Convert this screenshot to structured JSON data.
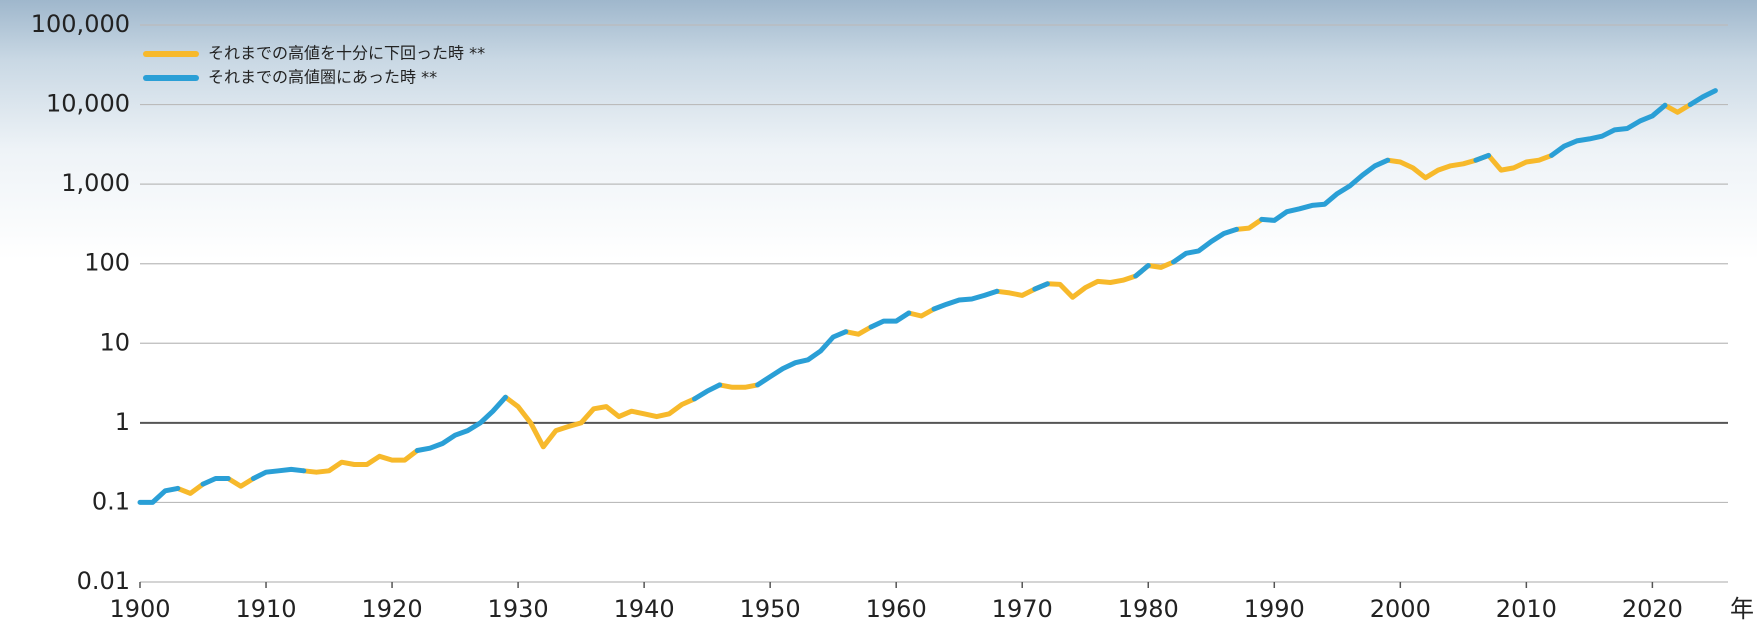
{
  "chart_data": {
    "type": "line",
    "x_label": "年",
    "log_y": true,
    "grid": true,
    "xlim": [
      1900,
      2026
    ],
    "xticks": [
      1900,
      1910,
      1920,
      1930,
      1940,
      1950,
      1960,
      1970,
      1980,
      1990,
      2000,
      2010,
      2020
    ],
    "ylim": [
      0.01,
      100000
    ],
    "yticks": [
      0.01,
      0.1,
      1,
      10,
      100,
      {
        "value": 1000,
        "label": "1,000"
      },
      {
        "value": 10000,
        "label": "10,000"
      },
      {
        "value": 100000,
        "label": "100,000"
      }
    ],
    "x": [
      1900,
      1901,
      1902,
      1903,
      1904,
      1905,
      1906,
      1907,
      1908,
      1909,
      1910,
      1911,
      1912,
      1913,
      1914,
      1915,
      1916,
      1917,
      1918,
      1919,
      1920,
      1921,
      1922,
      1923,
      1924,
      1925,
      1926,
      1927,
      1928,
      1929,
      1930,
      1931,
      1932,
      1933,
      1934,
      1935,
      1936,
      1937,
      1938,
      1939,
      1940,
      1941,
      1942,
      1943,
      1944,
      1945,
      1946,
      1947,
      1948,
      1949,
      1950,
      1951,
      1952,
      1953,
      1954,
      1955,
      1956,
      1957,
      1958,
      1959,
      1960,
      1961,
      1962,
      1963,
      1964,
      1965,
      1966,
      1967,
      1968,
      1969,
      1970,
      1971,
      1972,
      1973,
      1974,
      1975,
      1976,
      1977,
      1978,
      1979,
      1980,
      1981,
      1982,
      1983,
      1984,
      1985,
      1986,
      1987,
      1988,
      1989,
      1990,
      1991,
      1992,
      1993,
      1994,
      1995,
      1996,
      1997,
      1998,
      1999,
      2000,
      2001,
      2002,
      2003,
      2004,
      2005,
      2006,
      2007,
      2008,
      2009,
      2010,
      2011,
      2012,
      2013,
      2014,
      2015,
      2016,
      2017,
      2018,
      2019,
      2020,
      2021,
      2022,
      2023,
      2024,
      2025
    ],
    "series": [
      {
        "name": "それまでの高値を十分に下回った時 **",
        "color": "#f7b92b",
        "values": [
          null,
          null,
          null,
          0.15,
          0.13,
          0.17,
          null,
          0.2,
          0.16,
          0.2,
          null,
          null,
          null,
          0.25,
          0.24,
          0.25,
          0.32,
          0.3,
          0.3,
          0.38,
          0.34,
          0.34,
          0.45,
          null,
          null,
          null,
          null,
          null,
          null,
          2.1,
          1.6,
          1.0,
          0.5,
          0.8,
          0.9,
          1.0,
          1.5,
          1.6,
          1.2,
          1.4,
          1.3,
          1.2,
          1.3,
          1.7,
          2.0,
          null,
          3.0,
          2.8,
          2.8,
          3.0,
          null,
          null,
          null,
          null,
          null,
          null,
          14,
          13,
          16,
          null,
          null,
          24,
          22,
          27,
          null,
          null,
          null,
          null,
          45,
          43,
          40,
          48,
          56,
          55,
          38,
          50,
          60,
          58,
          62,
          70,
          95,
          90,
          105,
          null,
          null,
          null,
          null,
          270,
          280,
          360,
          null,
          null,
          null,
          null,
          null,
          null,
          null,
          null,
          null,
          2000,
          1900,
          1600,
          1200,
          1500,
          1700,
          1800,
          2000,
          2300,
          1500,
          1600,
          1900,
          2000,
          2300,
          null,
          null,
          null,
          null,
          null,
          null,
          null,
          null,
          9800,
          8000,
          10000,
          null,
          null
        ]
      },
      {
        "name": "それまでの高値圏にあった時 **",
        "color": "#2a9fd6",
        "values": [
          0.1,
          0.1,
          0.14,
          0.15,
          null,
          0.17,
          0.2,
          0.2,
          null,
          0.2,
          0.24,
          0.25,
          0.26,
          0.25,
          null,
          null,
          0.32,
          null,
          null,
          0.38,
          null,
          null,
          0.45,
          0.48,
          0.55,
          0.7,
          0.8,
          1.0,
          1.4,
          2.1,
          null,
          null,
          null,
          null,
          null,
          null,
          null,
          null,
          null,
          null,
          null,
          null,
          null,
          null,
          2.0,
          2.5,
          3.0,
          null,
          null,
          3.0,
          3.8,
          4.8,
          5.7,
          6.2,
          8,
          12,
          14,
          null,
          16,
          19,
          19,
          24,
          null,
          27,
          31,
          35,
          36,
          40,
          45,
          null,
          null,
          48,
          56,
          null,
          null,
          null,
          60,
          null,
          null,
          70,
          95,
          null,
          105,
          135,
          145,
          190,
          240,
          270,
          null,
          360,
          350,
          450,
          490,
          540,
          560,
          760,
          950,
          1300,
          1700,
          2000,
          null,
          null,
          null,
          null,
          null,
          null,
          2000,
          2300,
          null,
          null,
          null,
          null,
          2300,
          3000,
          3500,
          3700,
          4000,
          4800,
          5000,
          6200,
          7200,
          9800,
          null,
          10000,
          12500,
          15000
        ]
      }
    ]
  }
}
